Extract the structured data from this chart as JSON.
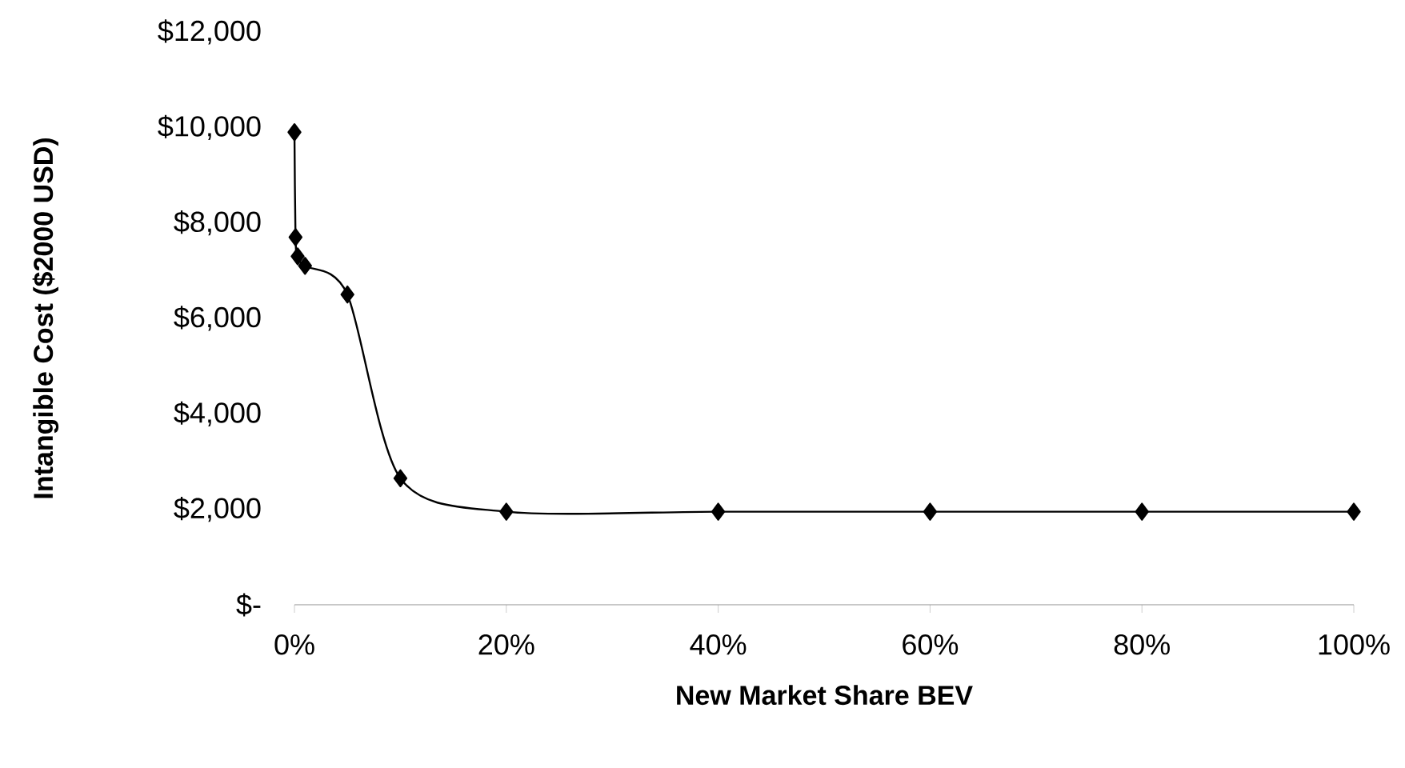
{
  "chart_data": {
    "type": "line",
    "xlabel": "New Market Share BEV",
    "ylabel": "Intangible Cost ($2000 USD)",
    "x": [
      0,
      0.1,
      0.3,
      1,
      5,
      10,
      20,
      40,
      60,
      80,
      100
    ],
    "values": [
      9900,
      7700,
      7300,
      7100,
      6500,
      2650,
      1950,
      1950,
      1950,
      1950,
      1950
    ],
    "color": "#000000",
    "marker": "diamond",
    "line_style": "solid",
    "xlim": [
      0,
      100
    ],
    "xticks": [
      {
        "value": 0,
        "label": "0%"
      },
      {
        "value": 20,
        "label": "20%"
      },
      {
        "value": 40,
        "label": "40%"
      },
      {
        "value": 60,
        "label": "60%"
      },
      {
        "value": 80,
        "label": "80%"
      },
      {
        "value": 100,
        "label": "100%"
      }
    ],
    "ylim": [
      0,
      12000
    ],
    "yticks": [
      {
        "value": 0,
        "label": "$-"
      },
      {
        "value": 2000,
        "label": "$2,000"
      },
      {
        "value": 4000,
        "label": "$4,000"
      },
      {
        "value": 6000,
        "label": "$6,000"
      },
      {
        "value": 8000,
        "label": "$8,000"
      },
      {
        "value": 10000,
        "label": "$10,000"
      },
      {
        "value": 12000,
        "label": "$12,000"
      }
    ],
    "grid": false
  }
}
